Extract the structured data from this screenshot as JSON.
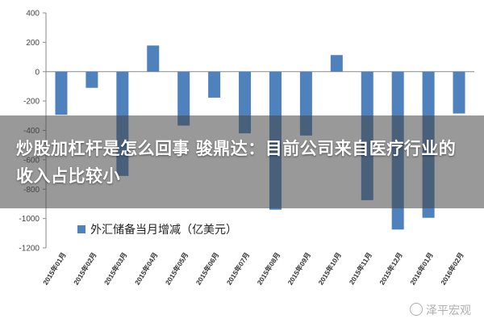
{
  "chart_data": {
    "type": "bar",
    "categories": [
      "2015年01月",
      "2015年02月",
      "2015年03月",
      "2015年04月",
      "2015年05月",
      "2015年06月",
      "2015年07月",
      "2015年08月",
      "2015年09月",
      "2015年10月",
      "2015年11月",
      "2015年12月",
      "2016年01月",
      "2016年02月"
    ],
    "series": [
      {
        "name": "外汇储备当月增减（亿美元）",
        "values": [
          -294,
          -110,
          -710,
          178,
          -367,
          -177,
          -420,
          -940,
          -435,
          113,
          -875,
          -1075,
          -995,
          -285
        ]
      }
    ],
    "ylim": [
      -1200,
      400
    ],
    "yticks": [
      400,
      200,
      0,
      -200,
      -400,
      -600,
      -800,
      -1000,
      -1200
    ],
    "legend_position": "lower-left",
    "bar_color": "#4F81BD",
    "grid": false
  },
  "overlay": {
    "headline": "炒股加杠杆是怎么回事 骏鼎达：目前公司来自医疗行业的收入占比较小"
  },
  "watermark": {
    "text": "泽平宏观",
    "icon": "wechat-icon"
  }
}
